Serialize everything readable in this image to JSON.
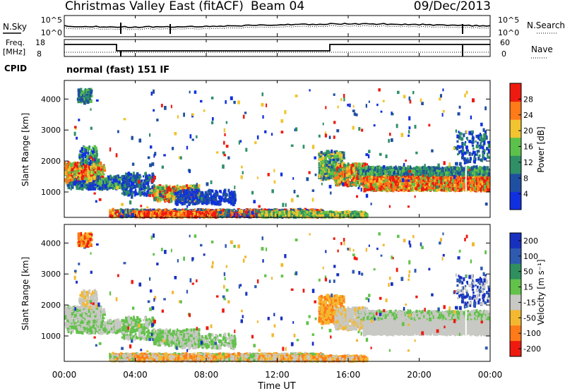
{
  "header": {
    "title": "Christmas Valley East (fitACF)",
    "beam": "Beam 04",
    "date": "09/Dec/2013"
  },
  "params": {
    "nsky_label": "N.Sky",
    "nsearch_label": "N.Search",
    "nsky_ticks": [
      "10^5",
      "10^0"
    ],
    "nsearch_ticks": [
      "10^5",
      "10^0"
    ],
    "freq_label": "Freq.",
    "freq_unit": "[MHz]",
    "freq_ticks": [
      "18",
      "8"
    ],
    "nave_label": "Nave",
    "nave_ticks": [
      "60",
      "0"
    ],
    "cpid_label": "CPID",
    "cpid_text": "normal (fast) 151 IF"
  },
  "chart_data": [
    {
      "type": "heatmap",
      "name": "power-panel",
      "ylabel": "Slant Range [km]",
      "yticks": [
        "1000",
        "2000",
        "3000",
        "4000"
      ],
      "yrange": [
        180,
        4600
      ],
      "colorbar_label": "Power [dB]",
      "colorbar_ticks": [
        "4",
        "8",
        "12",
        "16",
        "20",
        "24",
        "28"
      ],
      "colorbar_colors": [
        "#1030e0",
        "#1f4fa0",
        "#2f8f66",
        "#5cc14a",
        "#f2c430",
        "#ff7a18",
        "#ee1a10"
      ]
    },
    {
      "type": "heatmap",
      "name": "velocity-panel",
      "ylabel": "Slant Range [km]",
      "yticks": [
        "1000",
        "2000",
        "3000",
        "4000"
      ],
      "yrange": [
        180,
        4600
      ],
      "colorbar_label": "Velocity [m s⁻¹]",
      "colorbar_ticks": [
        "200",
        "100",
        "50",
        "15",
        "-15",
        "-50",
        "-100",
        "-200"
      ],
      "colorbar_colors": [
        "#1830c0",
        "#2e5ab0",
        "#2f8f5e",
        "#62c24a",
        "#c8c8c4",
        "#f2b830",
        "#ff7a18",
        "#ee1a10"
      ]
    }
  ],
  "xaxis": {
    "ticks": [
      "00:00",
      "04:00",
      "08:00",
      "12:00",
      "16:00",
      "20:00",
      "00:00"
    ],
    "label": "Time UT"
  }
}
